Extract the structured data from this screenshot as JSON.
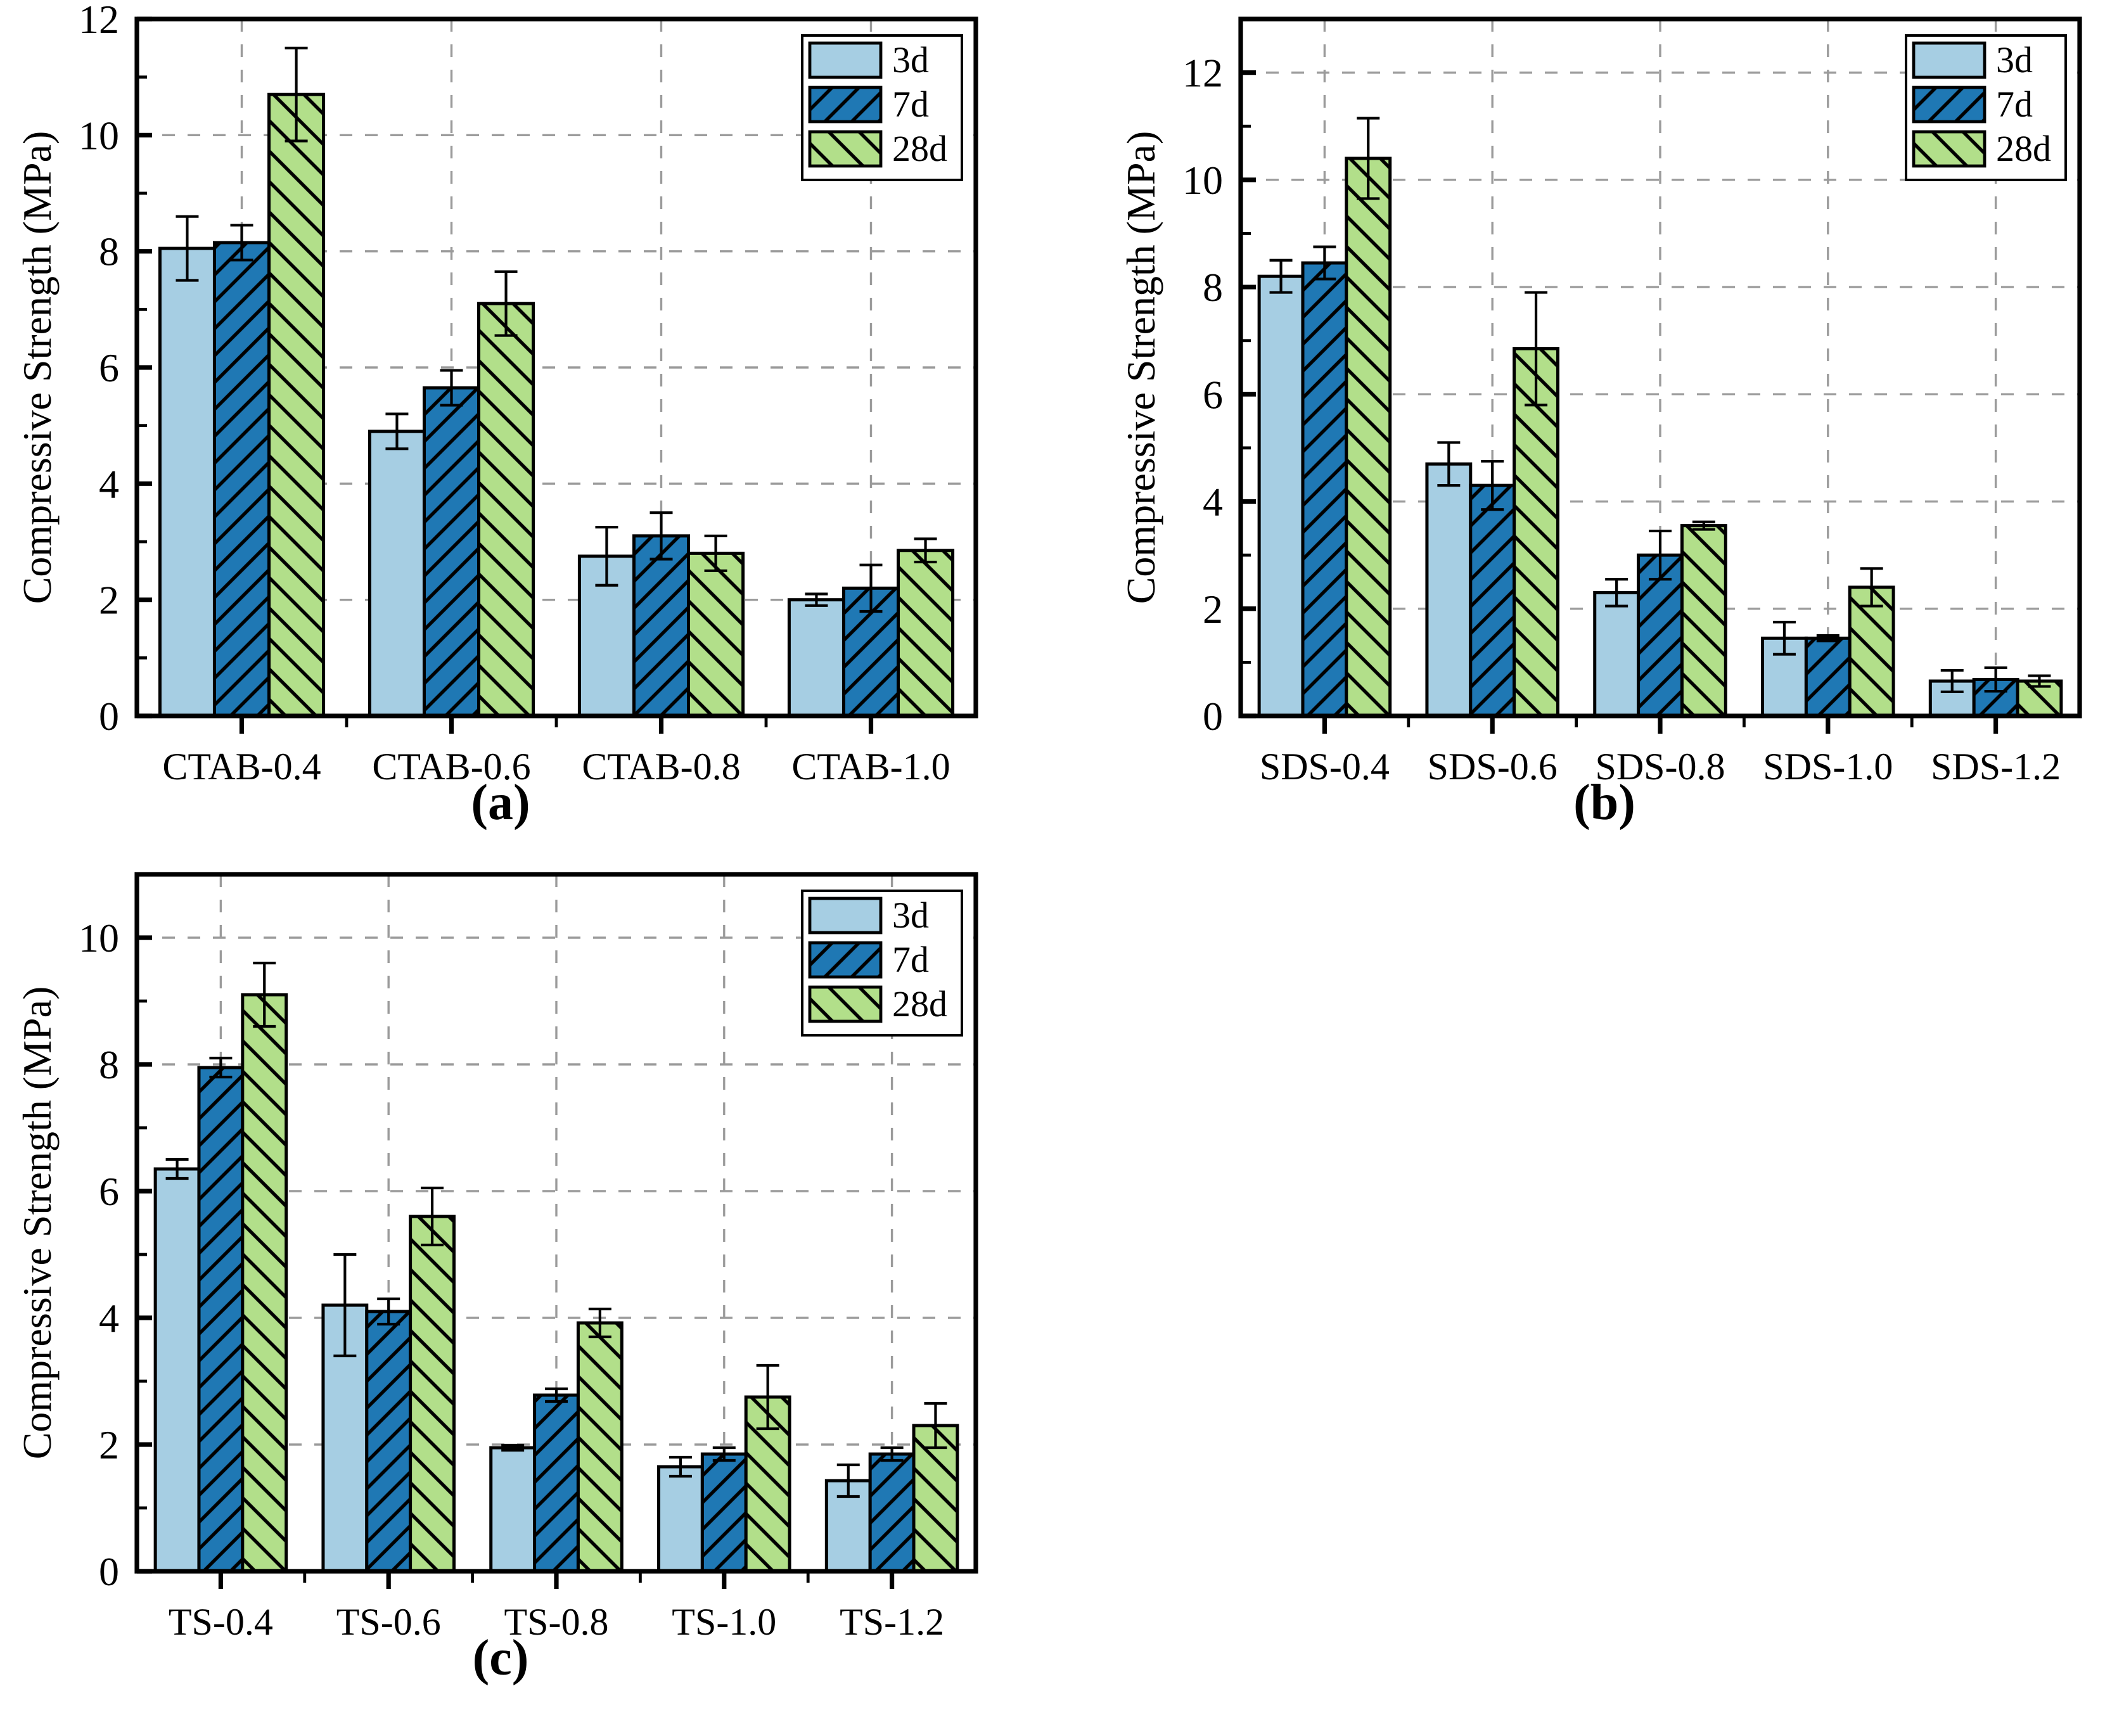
{
  "style": {
    "background": "#ffffff",
    "text_color": "#000000",
    "axis_color": "#000000",
    "grid_color": "#9b9b9b",
    "bar_edge_color": "#000000",
    "error_bar_color": "#000000",
    "legend_border_color": "#000000",
    "legend_background": "#ffffff"
  },
  "chart_data": [
    {
      "type": "bar",
      "caption": "(a)",
      "ylabel": "Compressive Strength (MPa)",
      "ylim": [
        0,
        12
      ],
      "yticks": [
        0,
        2,
        4,
        6,
        8,
        10,
        12
      ],
      "minor_ytick_step": 1,
      "grid": "dashed horizontal at major ticks and vertical at category centers",
      "legend_position": "top-right",
      "categories": [
        "CTAB-0.4",
        "CTAB-0.6",
        "CTAB-0.8",
        "CTAB-1.0"
      ],
      "series": [
        {
          "name": "3d",
          "color": "#A6CEE3",
          "hatch": "none",
          "values": [
            8.05,
            4.9,
            2.75,
            2.0
          ],
          "errors": [
            0.55,
            0.3,
            0.5,
            0.1
          ]
        },
        {
          "name": "7d",
          "color": "#1F78B4",
          "hatch": "/",
          "values": [
            8.15,
            5.65,
            3.1,
            2.2
          ],
          "errors": [
            0.3,
            0.3,
            0.4,
            0.4
          ]
        },
        {
          "name": "28d",
          "color": "#B2DF8A",
          "hatch": "\\",
          "values": [
            10.7,
            7.1,
            2.8,
            2.85
          ],
          "errors": [
            0.8,
            0.55,
            0.3,
            0.2
          ]
        }
      ]
    },
    {
      "type": "bar",
      "caption": "(b)",
      "ylabel": "Compressive Strength (MPa)",
      "ylim": [
        0,
        13
      ],
      "yticks": [
        0,
        2,
        4,
        6,
        8,
        10,
        12
      ],
      "minor_ytick_step": 1,
      "grid": "dashed horizontal at major ticks and vertical at category centers",
      "legend_position": "top-right",
      "categories": [
        "SDS-0.4",
        "SDS-0.6",
        "SDS-0.8",
        "SDS-1.0",
        "SDS-1.2"
      ],
      "series": [
        {
          "name": "3d",
          "color": "#A6CEE3",
          "hatch": "none",
          "values": [
            8.2,
            4.7,
            2.3,
            1.45,
            0.65
          ],
          "errors": [
            0.3,
            0.4,
            0.25,
            0.3,
            0.2
          ]
        },
        {
          "name": "7d",
          "color": "#1F78B4",
          "hatch": "/",
          "values": [
            8.45,
            4.3,
            3.0,
            1.45,
            0.68
          ],
          "errors": [
            0.3,
            0.45,
            0.45,
            0.05,
            0.22
          ]
        },
        {
          "name": "28d",
          "color": "#B2DF8A",
          "hatch": "\\",
          "values": [
            10.4,
            6.85,
            3.55,
            2.4,
            0.65
          ],
          "errors": [
            0.75,
            1.05,
            0.07,
            0.35,
            0.1
          ]
        }
      ]
    },
    {
      "type": "bar",
      "caption": "(c)",
      "ylabel": "Compressive Strength (MPa)",
      "ylim": [
        0,
        11
      ],
      "yticks": [
        0,
        2,
        4,
        6,
        8,
        10
      ],
      "minor_ytick_step": 1,
      "grid": "dashed horizontal at major ticks and vertical at category centers",
      "legend_position": "top-right",
      "categories": [
        "TS-0.4",
        "TS-0.6",
        "TS-0.8",
        "TS-1.0",
        "TS-1.2"
      ],
      "series": [
        {
          "name": "3d",
          "color": "#A6CEE3",
          "hatch": "none",
          "values": [
            6.35,
            4.2,
            1.95,
            1.65,
            1.43
          ],
          "errors": [
            0.15,
            0.8,
            0.04,
            0.15,
            0.25
          ]
        },
        {
          "name": "7d",
          "color": "#1F78B4",
          "hatch": "/",
          "values": [
            7.95,
            4.1,
            2.78,
            1.85,
            1.85
          ],
          "errors": [
            0.15,
            0.2,
            0.1,
            0.1,
            0.1
          ]
        },
        {
          "name": "28d",
          "color": "#B2DF8A",
          "hatch": "\\",
          "values": [
            9.1,
            5.6,
            3.92,
            2.75,
            2.3
          ],
          "errors": [
            0.5,
            0.45,
            0.22,
            0.5,
            0.35
          ]
        }
      ]
    }
  ]
}
